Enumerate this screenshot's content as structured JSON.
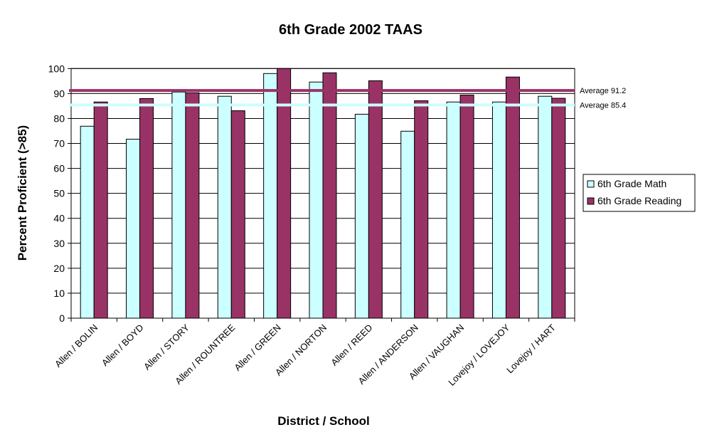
{
  "chart_data": {
    "type": "bar",
    "title": "6th Grade 2002 TAAS",
    "xlabel": "District / School",
    "ylabel": "Percent Proficient (>85)",
    "ylim": [
      0,
      100
    ],
    "yticks": [
      0,
      10,
      20,
      30,
      40,
      50,
      60,
      70,
      80,
      90,
      100
    ],
    "grid": true,
    "legend_placement": "right",
    "categories": [
      "Allen / BOLIN",
      "Allen / BOYD",
      "Allen / STORY",
      "Allen / ROUNTREE",
      "Allen / GREEN",
      "Allen / NORTON",
      "Allen / REED",
      "Allen / ANDERSON",
      "Allen / VAUGHAN",
      "Lovejoy / LOVEJOY",
      "Lovejoy / HART"
    ],
    "series": [
      {
        "name": "6th Grade Math",
        "color": "#CCFFFF",
        "values": [
          76.9,
          71.7,
          90.6,
          88.9,
          98.0,
          94.6,
          81.7,
          74.9,
          86.6,
          86.6,
          88.9
        ]
      },
      {
        "name": "6th Grade Reading",
        "color": "#993366",
        "values": [
          86.6,
          88.0,
          90.3,
          83.1,
          100.0,
          98.3,
          95.1,
          87.1,
          89.4,
          96.6,
          88.1
        ]
      }
    ],
    "reference_lines": [
      {
        "label": "Average 91.2",
        "value": 91.2,
        "color": "#993366"
      },
      {
        "label": "Average 85.4",
        "value": 85.4,
        "color": "#CCFFFF"
      }
    ]
  }
}
